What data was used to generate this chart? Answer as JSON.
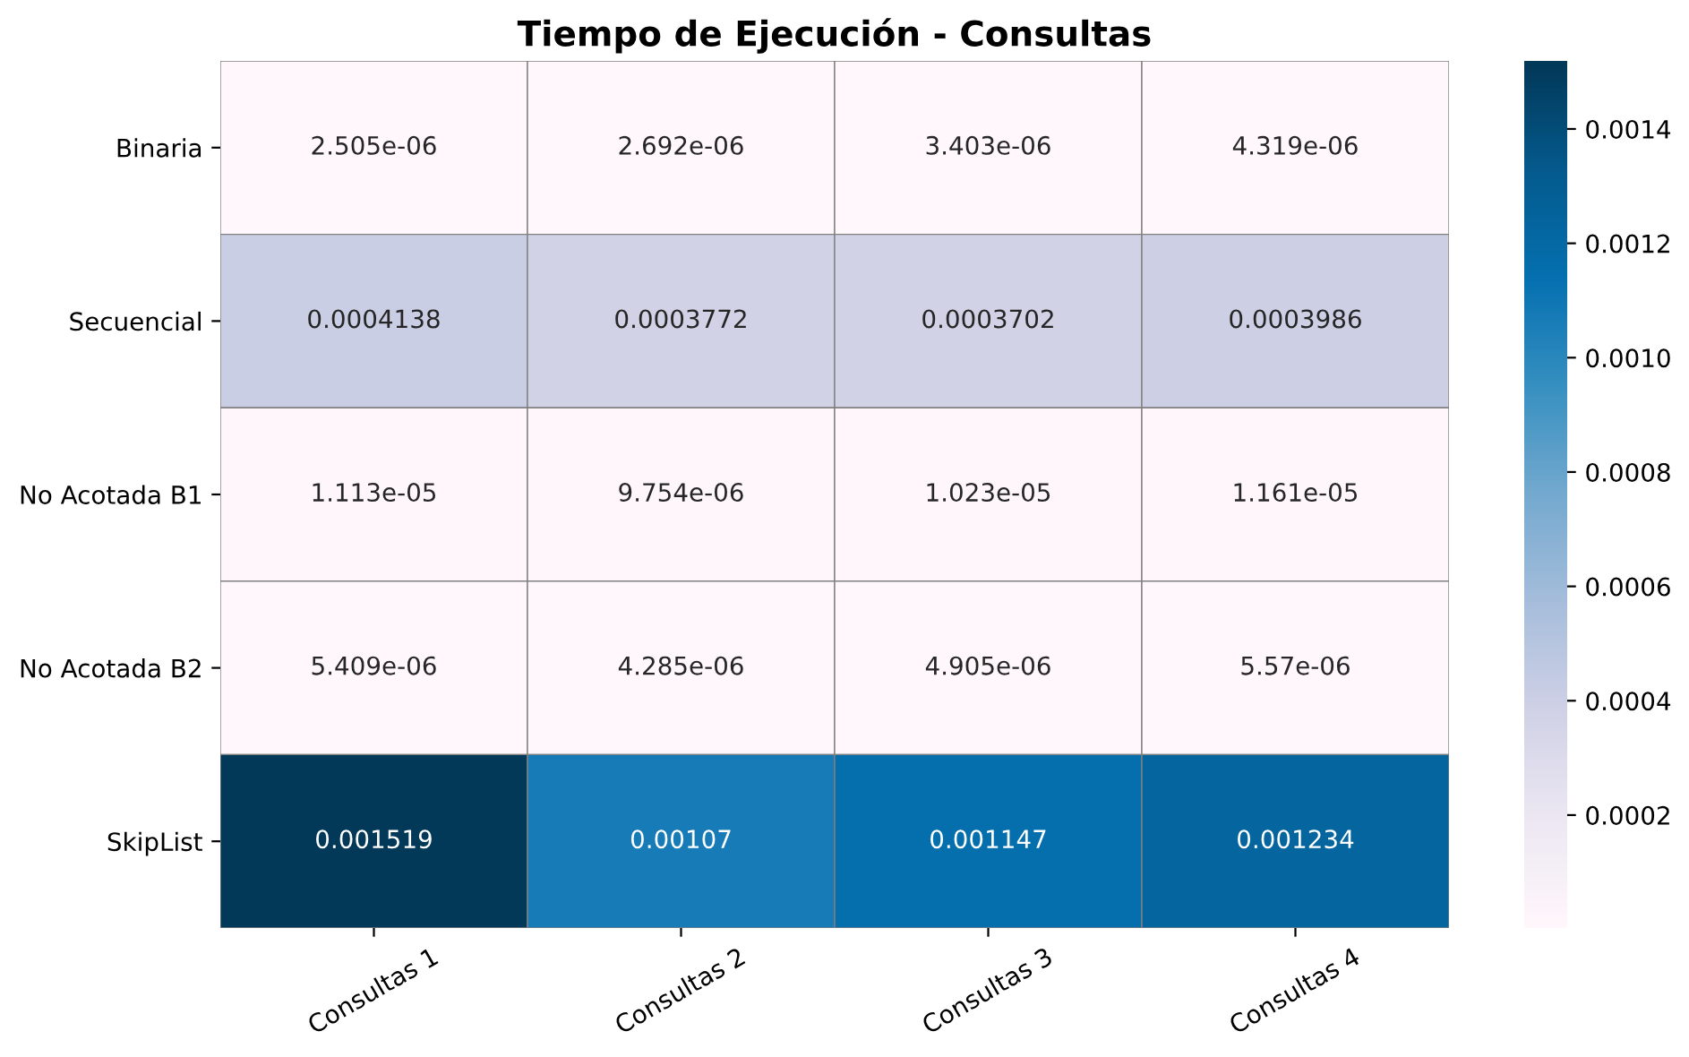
{
  "chart_data": {
    "type": "heatmap",
    "title": "Tiempo de Ejecución - Consultas",
    "categories": [
      "Consultas 1",
      "Consultas 2",
      "Consultas 3",
      "Consultas 4"
    ],
    "y_categories": [
      "Binaria",
      "Secuencial",
      "No Acotada B1",
      "No Acotada B2",
      "SkipList"
    ],
    "cells": [
      [
        2.505e-06,
        2.692e-06,
        3.403e-06,
        4.319e-06
      ],
      [
        0.0004138,
        0.0003772,
        0.0003702,
        0.0003986
      ],
      [
        1.113e-05,
        9.754e-06,
        1.023e-05,
        1.161e-05
      ],
      [
        5.409e-06,
        4.285e-06,
        4.905e-06,
        5.57e-06
      ],
      [
        0.001519,
        0.00107,
        0.001147,
        0.001234
      ]
    ],
    "clim": [
      2.505e-06,
      0.001519
    ],
    "cticks": [
      0.0002,
      0.0004,
      0.0006,
      0.0008,
      {
        "value": 0.001,
        "label": "0.0010"
      },
      0.0012,
      0.0014
    ],
    "data_labels": true
  }
}
